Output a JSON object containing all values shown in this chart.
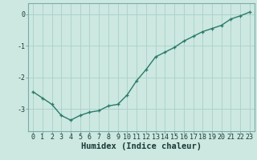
{
  "x": [
    0,
    1,
    2,
    3,
    4,
    5,
    6,
    7,
    8,
    9,
    10,
    11,
    12,
    13,
    14,
    15,
    16,
    17,
    18,
    19,
    20,
    21,
    22,
    23
  ],
  "y": [
    -2.45,
    -2.65,
    -2.85,
    -3.2,
    -3.35,
    -3.2,
    -3.1,
    -3.05,
    -2.9,
    -2.85,
    -2.55,
    -2.1,
    -1.75,
    -1.35,
    -1.2,
    -1.05,
    -0.85,
    -0.7,
    -0.55,
    -0.45,
    -0.35,
    -0.15,
    -0.05,
    0.07
  ],
  "line_color": "#2a7a6a",
  "bg_color": "#cce8e0",
  "grid_color": "#aacfc8",
  "xlabel": "Humidex (Indice chaleur)",
  "ylim": [
    -3.7,
    0.35
  ],
  "xlim": [
    -0.5,
    23.5
  ],
  "yticks": [
    0,
    -1,
    -2,
    -3
  ],
  "xticks": [
    0,
    1,
    2,
    3,
    4,
    5,
    6,
    7,
    8,
    9,
    10,
    11,
    12,
    13,
    14,
    15,
    16,
    17,
    18,
    19,
    20,
    21,
    22,
    23
  ],
  "label_fontsize": 7.5,
  "tick_fontsize": 6,
  "linewidth": 1.0,
  "markersize": 2.5,
  "spine_color": "#7aada8"
}
